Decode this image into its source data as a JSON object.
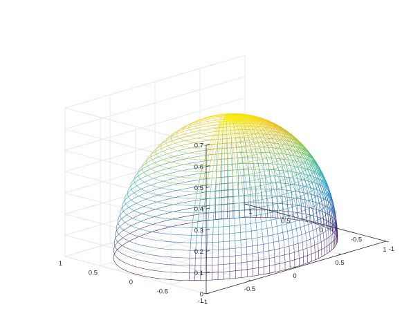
{
  "chart_data": {
    "type": "surface",
    "title": "",
    "xlabel": "",
    "ylabel": "",
    "zlabel": "",
    "xlim": [
      -1,
      1
    ],
    "ylim": [
      -1,
      1
    ],
    "zlim": [
      0,
      0.7
    ],
    "x_ticks": [
      -1,
      -0.5,
      0,
      0.5,
      1
    ],
    "x_tick_labels": [
      "-1",
      "-0.5",
      "0",
      "0.5",
      "1"
    ],
    "y_ticks": [
      -1,
      -0.5,
      0,
      0.5,
      1
    ],
    "y_tick_labels": [
      "-1",
      "-0.5",
      "0",
      "0.5",
      "1"
    ],
    "z_ticks": [
      0,
      0.1,
      0.2,
      0.3,
      0.4,
      0.5,
      0.6,
      0.7
    ],
    "z_tick_labels": [
      "0",
      "0.1",
      "0.2",
      "0.3",
      "0.4",
      "0.5",
      "0.6",
      "0.7"
    ],
    "grid": true,
    "colormap": [
      "#440154",
      "#3e4a9a",
      "#1f78c8",
      "#20a4c0",
      "#3cbc74",
      "#a8c83c",
      "#f0b820",
      "#f9fb0e"
    ],
    "surface": {
      "shape": "hemisphere",
      "radius": 0.98,
      "peak_z": 0.62,
      "rings": 28,
      "meridians": 120
    }
  }
}
